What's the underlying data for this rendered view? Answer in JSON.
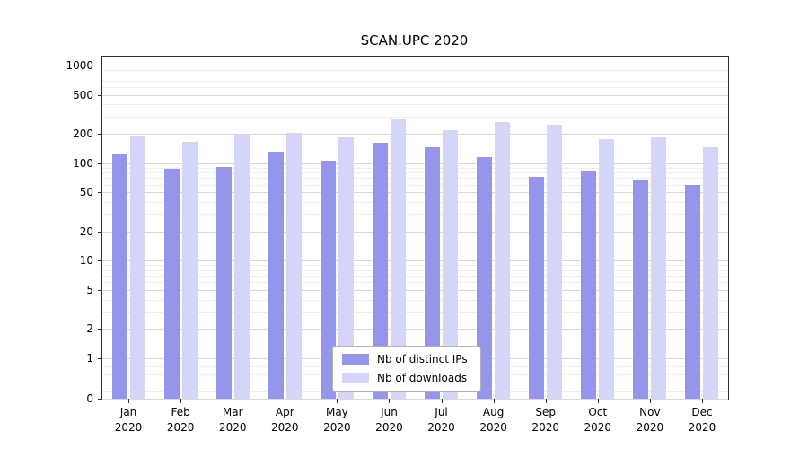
{
  "chart_data": {
    "type": "bar",
    "title": "SCAN.UPC 2020",
    "scale": "symlog",
    "grid": true,
    "legend_position": "lower center (inside plot)",
    "xlabel": "",
    "ylabel": "",
    "categories": [
      "Jan 2020",
      "Feb 2020",
      "Mar 2020",
      "Apr 2020",
      "May 2020",
      "Jun 2020",
      "Jul 2020",
      "Aug 2020",
      "Sep 2020",
      "Oct 2020",
      "Nov 2020",
      "Dec 2020"
    ],
    "yticks": [
      0,
      1,
      2,
      5,
      10,
      20,
      50,
      100,
      200,
      500,
      1000
    ],
    "ylim": [
      0,
      1200
    ],
    "series": [
      {
        "name": "Nb of distinct IPs",
        "color": "#9595ec",
        "values": [
          125,
          88,
          92,
          130,
          105,
          160,
          145,
          115,
          72,
          84,
          68,
          60
        ]
      },
      {
        "name": "Nb of downloads",
        "color": "#d5d5f8",
        "values": [
          190,
          165,
          200,
          205,
          185,
          285,
          215,
          265,
          245,
          175,
          185,
          145
        ]
      }
    ]
  }
}
